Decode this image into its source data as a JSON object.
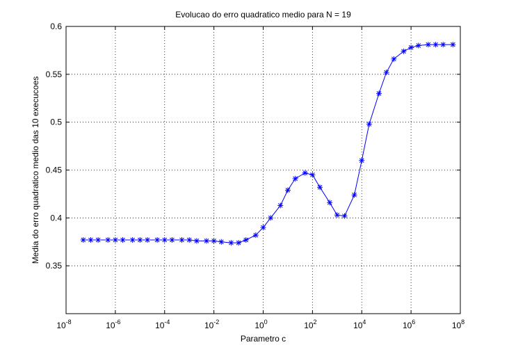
{
  "chart_data": {
    "type": "line",
    "title": "Evolucao do erro quadratico medio para N = 19",
    "xlabel": "Parametro c",
    "ylabel": "Media do erro quadratico medio das 10 execucoes",
    "x_scale": "log",
    "xlim": [
      1e-08,
      100000000.0
    ],
    "ylim": [
      0.3,
      0.6
    ],
    "x_ticks": [
      {
        "value": 1e-08,
        "base": "10",
        "exp": "-8"
      },
      {
        "value": 1e-06,
        "base": "10",
        "exp": "-6"
      },
      {
        "value": 0.0001,
        "base": "10",
        "exp": "-4"
      },
      {
        "value": 0.01,
        "base": "10",
        "exp": "-2"
      },
      {
        "value": 1,
        "base": "10",
        "exp": "0"
      },
      {
        "value": 100.0,
        "base": "10",
        "exp": "2"
      },
      {
        "value": 10000.0,
        "base": "10",
        "exp": "4"
      },
      {
        "value": 1000000.0,
        "base": "10",
        "exp": "6"
      },
      {
        "value": 100000000.0,
        "base": "10",
        "exp": "8"
      }
    ],
    "y_ticks": [
      {
        "value": 0.35,
        "label": "0.35"
      },
      {
        "value": 0.4,
        "label": "0.4"
      },
      {
        "value": 0.45,
        "label": "0.45"
      },
      {
        "value": 0.5,
        "label": "0.5"
      },
      {
        "value": 0.55,
        "label": "0.55"
      },
      {
        "value": 0.6,
        "label": "0.6"
      }
    ],
    "grid": true,
    "series": [
      {
        "color": "#0000ff",
        "marker": "asterisk",
        "x": [
          5e-08,
          1e-07,
          2e-07,
          5e-07,
          1e-06,
          2e-06,
          5e-06,
          1e-05,
          2e-05,
          5e-05,
          0.0001,
          0.0002,
          0.0005,
          0.001,
          0.002,
          0.005,
          0.01,
          0.02,
          0.05,
          0.1,
          0.2,
          0.5,
          1,
          2,
          5,
          10,
          20,
          50,
          100,
          200,
          500,
          1000,
          2000,
          5000,
          10000.0,
          20000.0,
          50000.0,
          100000.0,
          200000.0,
          500000.0,
          1000000.0,
          2000000.0,
          5000000.0,
          10000000.0,
          20000000.0,
          50000000.0
        ],
        "y": [
          0.377,
          0.377,
          0.377,
          0.377,
          0.377,
          0.377,
          0.377,
          0.377,
          0.377,
          0.377,
          0.377,
          0.377,
          0.377,
          0.377,
          0.376,
          0.376,
          0.376,
          0.375,
          0.374,
          0.374,
          0.377,
          0.382,
          0.39,
          0.4,
          0.413,
          0.429,
          0.441,
          0.447,
          0.445,
          0.432,
          0.416,
          0.403,
          0.402,
          0.424,
          0.46,
          0.498,
          0.53,
          0.552,
          0.566,
          0.574,
          0.578,
          0.58,
          0.581,
          0.581,
          0.581,
          0.581
        ]
      }
    ]
  }
}
